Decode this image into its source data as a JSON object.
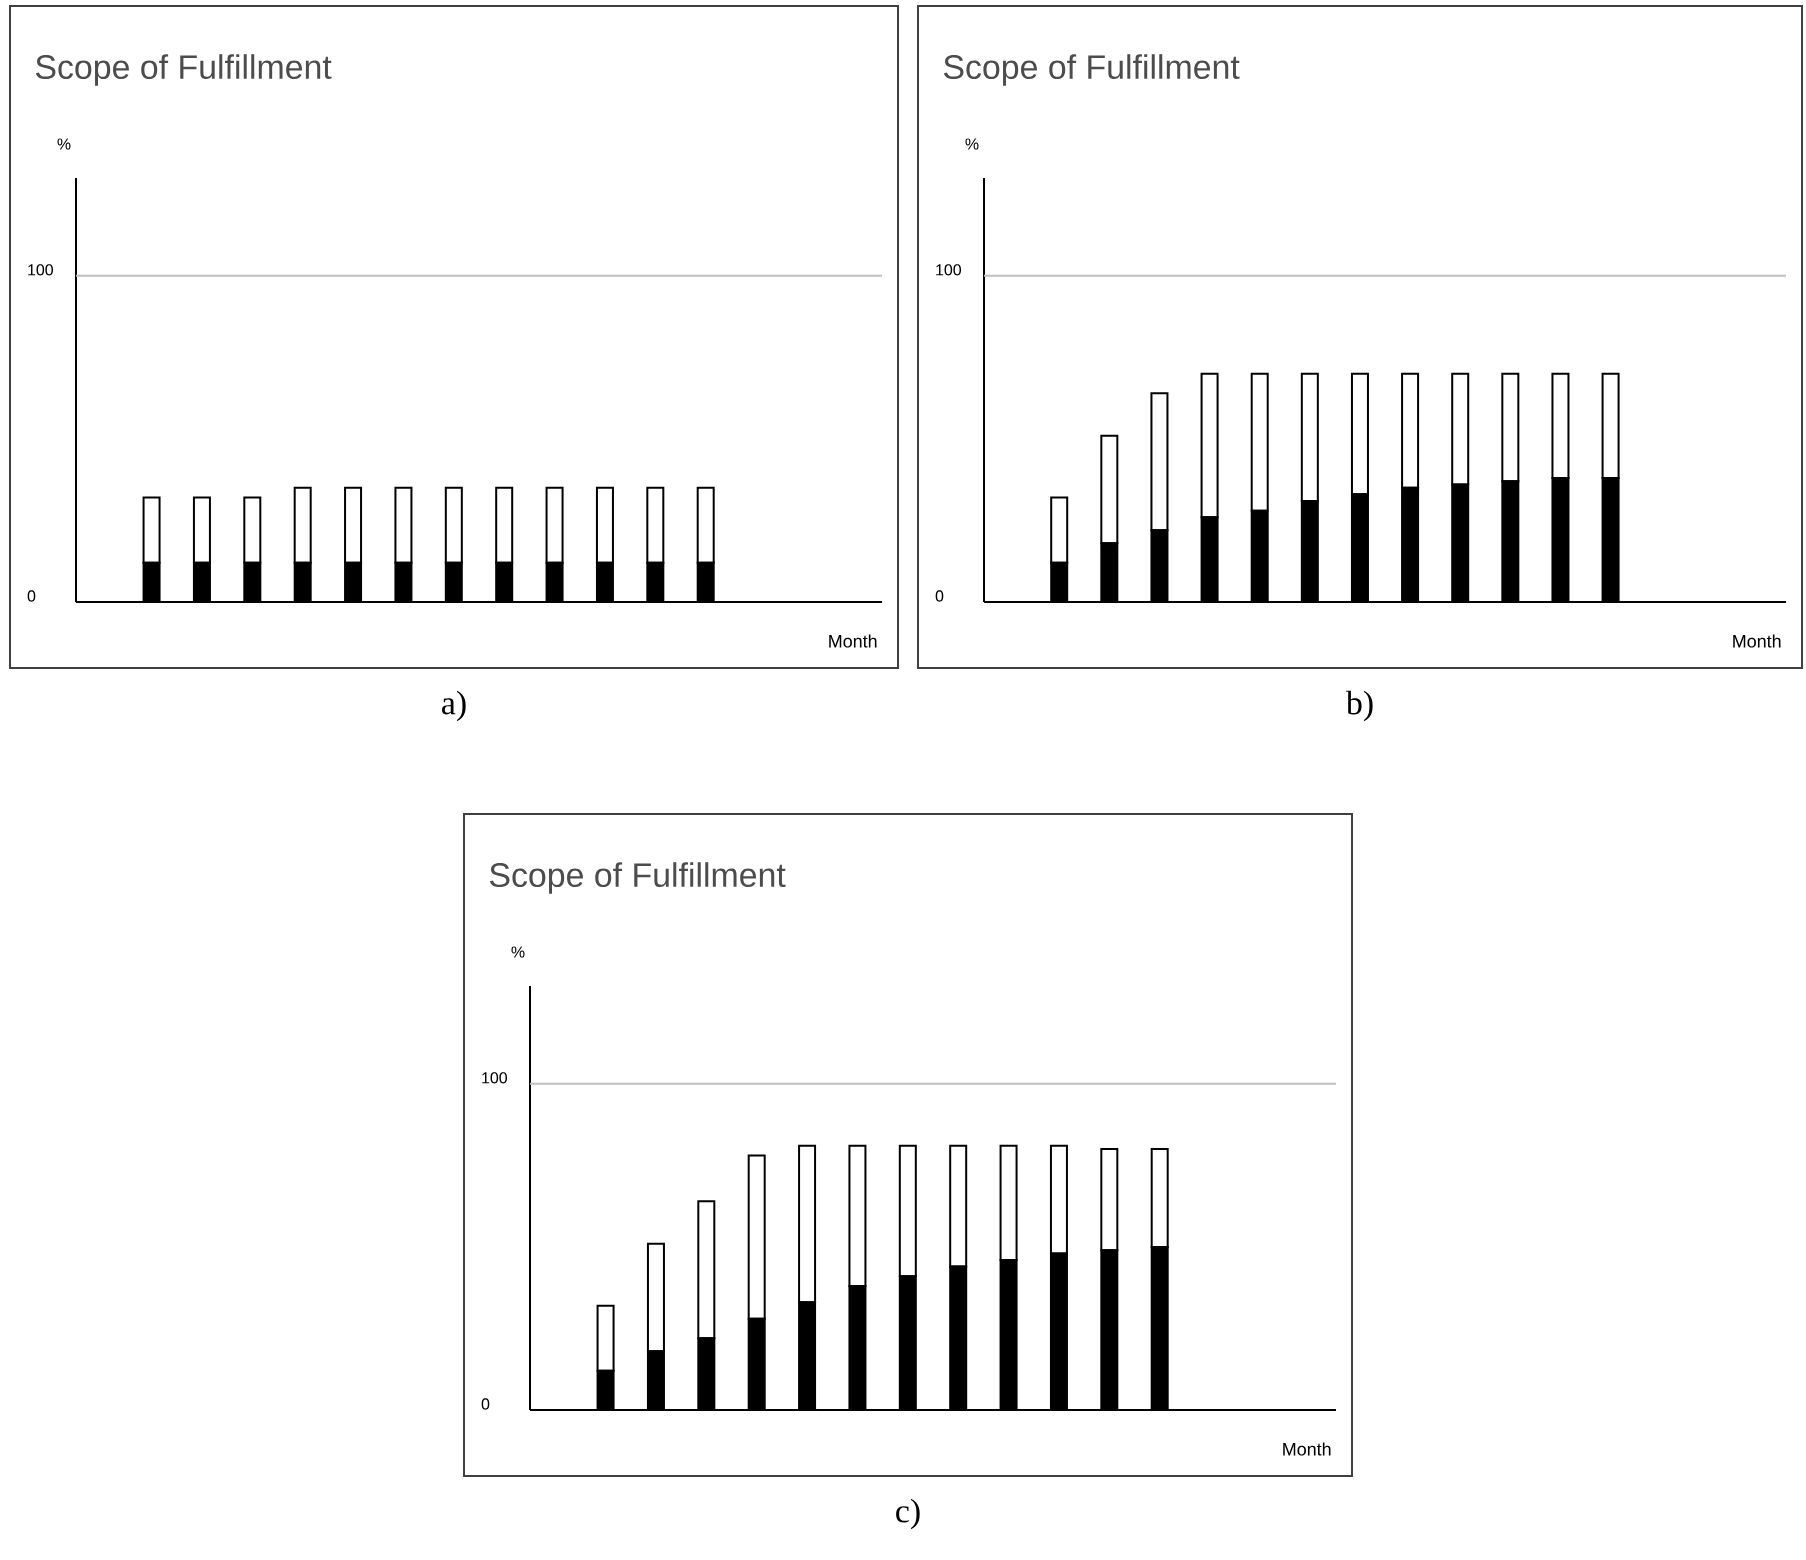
{
  "chart_data": [
    {
      "type": "bar",
      "title": "Scope of Fulfillment",
      "ylabel": "%",
      "xlabel": "Month",
      "stacked": true,
      "categories": [
        null,
        null,
        null,
        null,
        null,
        null,
        null,
        null,
        null,
        null,
        null,
        null,
        null,
        null,
        null,
        null
      ],
      "series": [
        {
          "color": "#000000",
          "values": [
            null,
            12,
            12,
            12,
            12,
            12,
            12,
            12,
            12,
            12,
            12,
            12,
            12,
            null,
            null,
            null
          ]
        },
        {
          "color": "#ffffff",
          "values": [
            null,
            20,
            20,
            20,
            23,
            23,
            23,
            23,
            23,
            23,
            23,
            23,
            23,
            null,
            null,
            null
          ]
        }
      ],
      "ylim": [
        0,
        130
      ],
      "yticks": [
        0,
        100
      ],
      "ref_lines": [
        {
          "axis": "y",
          "value": 100,
          "color": "#c0c0c0"
        }
      ],
      "annotations": [
        "a)"
      ]
    },
    {
      "type": "bar",
      "title": "Scope of Fulfillment",
      "ylabel": "%",
      "xlabel": "Month",
      "stacked": true,
      "categories": [
        null,
        null,
        null,
        null,
        null,
        null,
        null,
        null,
        null,
        null,
        null,
        null,
        null,
        null,
        null,
        null
      ],
      "series": [
        {
          "color": "#000000",
          "values": [
            null,
            12,
            18,
            22,
            26,
            28,
            31,
            33,
            35,
            36,
            37,
            38,
            38,
            null,
            null,
            null
          ]
        },
        {
          "color": "#ffffff",
          "values": [
            null,
            20,
            33,
            42,
            44,
            42,
            39,
            37,
            35,
            34,
            33,
            32,
            32,
            null,
            null,
            null
          ]
        }
      ],
      "ylim": [
        0,
        130
      ],
      "yticks": [
        0,
        100
      ],
      "ref_lines": [
        {
          "axis": "y",
          "value": 100,
          "color": "#c0c0c0"
        }
      ],
      "annotations": [
        "b)"
      ]
    },
    {
      "type": "bar",
      "title": "Scope of Fulfillment",
      "ylabel": "%",
      "xlabel": "Month",
      "stacked": true,
      "categories": [
        null,
        null,
        null,
        null,
        null,
        null,
        null,
        null,
        null,
        null,
        null,
        null,
        null,
        null,
        null,
        null
      ],
      "series": [
        {
          "color": "#000000",
          "values": [
            null,
            12,
            18,
            22,
            28,
            33,
            38,
            41,
            44,
            46,
            48,
            49,
            50,
            null,
            null,
            null
          ]
        },
        {
          "color": "#ffffff",
          "values": [
            null,
            20,
            33,
            42,
            50,
            48,
            43,
            40,
            37,
            35,
            33,
            31,
            30,
            null,
            null,
            null
          ]
        }
      ],
      "ylim": [
        0,
        130
      ],
      "yticks": [
        0,
        100
      ],
      "ref_lines": [
        {
          "axis": "y",
          "value": 100,
          "color": "#c0c0c0"
        }
      ],
      "annotations": [
        "c)"
      ]
    }
  ]
}
